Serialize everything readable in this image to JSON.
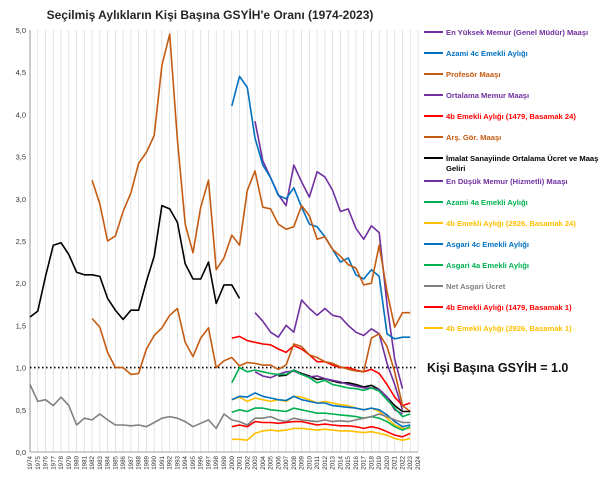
{
  "chart_data": {
    "type": "line",
    "title": "Seçilmiş Aylıkların Kişi Başına GSYİH'e Oranı (1974-2023)",
    "xlabel": "",
    "ylabel": "",
    "xlim": [
      1974,
      2024
    ],
    "ylim": [
      0,
      5.0
    ],
    "y_ticks": [
      "0,0",
      "0,5",
      "1,0",
      "1,5",
      "2,0",
      "2,5",
      "3,0",
      "3,5",
      "4,0",
      "4,5",
      "5,0"
    ],
    "x_ticks": [
      "1974",
      "1975",
      "1976",
      "1977",
      "1978",
      "1979",
      "1980",
      "1981",
      "1982",
      "1983",
      "1984",
      "1985",
      "1986",
      "1987",
      "1988",
      "1989",
      "1990",
      "1991",
      "1992",
      "1993",
      "1994",
      "1995",
      "1996",
      "1997",
      "1998",
      "1999",
      "2000",
      "2001",
      "2002",
      "2003",
      "2004",
      "2005",
      "2006",
      "2007",
      "2008",
      "2009",
      "2010",
      "2011",
      "2012",
      "2013",
      "2014",
      "2015",
      "2016",
      "2017",
      "2018",
      "2019",
      "2020",
      "2021",
      "2022",
      "2023",
      "2024"
    ],
    "grid": "vertical",
    "legend_position": "right",
    "reference_line": {
      "y": 1.0,
      "label": "Kişi Başına GSYİH = 1.0",
      "style": "dotted"
    },
    "series": [
      {
        "name": "En Yüksek Memur (Genel Müdür) Maaşı",
        "color": "#7030a0",
        "x": [
          2003,
          2004,
          2005,
          2006,
          2007,
          2008,
          2009,
          2010,
          2011,
          2012,
          2013,
          2014,
          2015,
          2016,
          2017,
          2018,
          2019,
          2020,
          2021,
          2022
        ],
        "values": [
          3.92,
          3.45,
          3.25,
          3.05,
          2.92,
          3.4,
          3.2,
          3.02,
          3.32,
          3.26,
          3.1,
          2.85,
          2.88,
          2.65,
          2.52,
          2.68,
          2.6,
          1.75,
          1.1,
          0.75
        ]
      },
      {
        "name": "Azami 4c Emekli Aylığı",
        "color": "#0070c0",
        "x": [
          2000,
          2001,
          2002,
          2003,
          2004,
          2005,
          2006,
          2007,
          2008,
          2009,
          2010,
          2011,
          2012,
          2013,
          2014,
          2015,
          2016,
          2017,
          2018,
          2019,
          2020,
          2021,
          2022,
          2023
        ],
        "values": [
          4.1,
          4.45,
          4.32,
          3.72,
          3.4,
          3.25,
          3.04,
          3.0,
          3.13,
          2.9,
          2.7,
          2.67,
          2.55,
          2.4,
          2.25,
          2.3,
          2.1,
          2.05,
          2.16,
          2.08,
          1.4,
          1.34,
          1.36,
          1.36
        ]
      },
      {
        "name": "Profesör Maaşı",
        "color": "#c55a11",
        "x": [
          1982,
          1983,
          1984,
          1985,
          1986,
          1987,
          1988,
          1989,
          1990,
          1991,
          1992,
          1993,
          1994,
          1995,
          1996,
          1997,
          1998,
          1999,
          2000,
          2001,
          2002,
          2003,
          2004,
          2005,
          2006,
          2007,
          2008,
          2009,
          2010,
          2011,
          2012,
          2013,
          2014,
          2015,
          2016,
          2017,
          2018,
          2019,
          2020,
          2021,
          2022,
          2023
        ],
        "values": [
          3.22,
          2.94,
          2.5,
          2.56,
          2.85,
          3.07,
          3.42,
          3.55,
          3.75,
          4.58,
          4.95,
          3.7,
          2.7,
          2.36,
          2.9,
          3.22,
          2.16,
          2.3,
          2.57,
          2.45,
          3.1,
          3.33,
          2.9,
          2.88,
          2.7,
          2.64,
          2.67,
          2.92,
          2.8,
          2.52,
          2.55,
          2.4,
          2.32,
          2.22,
          2.18,
          1.98,
          2.0,
          2.45,
          1.9,
          1.48,
          1.65,
          1.65
        ]
      },
      {
        "name": "Ortalama Memur Maaşı",
        "color": "#7030a0",
        "x": [
          2003,
          2004,
          2005,
          2006,
          2007,
          2008,
          2009,
          2010,
          2011,
          2012,
          2013,
          2014,
          2015,
          2016,
          2017,
          2018,
          2019,
          2020,
          2021,
          2022
        ],
        "values": [
          1.65,
          1.55,
          1.42,
          1.36,
          1.5,
          1.42,
          1.8,
          1.7,
          1.62,
          1.7,
          1.62,
          1.6,
          1.5,
          1.42,
          1.38,
          1.46,
          1.4,
          1.05,
          0.8,
          0.5
        ]
      },
      {
        "name": "4b Emekli Aylığı (1479, Basamak 24)",
        "color": "#ff0000",
        "x": [
          2000,
          2001,
          2002,
          2003,
          2004,
          2005,
          2006,
          2007,
          2008,
          2009,
          2010,
          2011,
          2012,
          2013,
          2014,
          2015,
          2016,
          2017,
          2018,
          2019,
          2020,
          2021,
          2022,
          2023
        ],
        "values": [
          1.35,
          1.37,
          1.32,
          1.3,
          1.28,
          1.27,
          1.22,
          1.18,
          1.26,
          1.22,
          1.15,
          1.07,
          1.07,
          1.03,
          1.0,
          1.0,
          0.97,
          0.95,
          0.98,
          0.93,
          0.8,
          0.65,
          0.55,
          0.58
        ]
      },
      {
        "name": "Arş. Gör. Maaşı",
        "color": "#c55a11",
        "x": [
          1982,
          1983,
          1984,
          1985,
          1986,
          1987,
          1988,
          1989,
          1990,
          1991,
          1992,
          1993,
          1994,
          1995,
          1996,
          1997,
          1998,
          1999,
          2000,
          2001,
          2002,
          2003,
          2004,
          2005,
          2006,
          2007,
          2008,
          2009,
          2010,
          2011,
          2012,
          2013,
          2014,
          2015,
          2016,
          2017,
          2018,
          2019,
          2020,
          2021,
          2022,
          2023
        ],
        "values": [
          1.58,
          1.48,
          1.18,
          1.0,
          1.0,
          0.92,
          0.93,
          1.22,
          1.38,
          1.47,
          1.62,
          1.7,
          1.3,
          1.13,
          1.35,
          1.47,
          1.0,
          1.08,
          1.12,
          1.02,
          1.06,
          1.05,
          1.03,
          1.03,
          0.98,
          1.03,
          1.28,
          1.25,
          1.15,
          1.12,
          1.07,
          1.05,
          1.01,
          0.98,
          0.96,
          0.95,
          1.35,
          1.4,
          1.25,
          0.95,
          0.55,
          0.48
        ]
      },
      {
        "name": "İmalat Sanayiinde Ortalama Ücret ve Maaş Geliri",
        "color": "#000000",
        "x": [
          1974,
          1975,
          1976,
          1977,
          1978,
          1979,
          1980,
          1981,
          1982,
          1983,
          1984,
          1985,
          1986,
          1987,
          1988,
          1989,
          1990,
          1991,
          1992,
          1993,
          1994,
          1995,
          1996,
          1997,
          1998,
          1999,
          2000,
          2001
        ],
        "values": [
          1.6,
          1.67,
          2.08,
          2.45,
          2.48,
          2.34,
          2.13,
          2.1,
          2.1,
          2.08,
          1.82,
          1.68,
          1.57,
          1.68,
          1.68,
          2.02,
          2.32,
          2.92,
          2.88,
          2.72,
          2.23,
          2.05,
          2.05,
          2.25,
          1.76,
          1.98,
          1.98,
          1.82
        ]
      },
      {
        "name": "",
        "color": "#000000",
        "x": [
          2006,
          2007,
          2008,
          2009,
          2010,
          2011,
          2012,
          2013,
          2014,
          2015,
          2016,
          2017,
          2018,
          2019,
          2020,
          2021,
          2022,
          2023
        ],
        "values": [
          0.9,
          0.91,
          0.97,
          0.93,
          0.9,
          0.86,
          0.87,
          0.84,
          0.82,
          0.82,
          0.8,
          0.77,
          0.79,
          0.74,
          0.65,
          0.55,
          0.48,
          0.48
        ]
      },
      {
        "name": "En Düşük Memur (Hizmetli) Maaşı",
        "color": "#7030a0",
        "x": [
          2003,
          2004,
          2005,
          2006,
          2007,
          2008,
          2009,
          2010,
          2011,
          2012,
          2013,
          2014,
          2015,
          2016,
          2017,
          2018,
          2019,
          2020,
          2021,
          2022
        ],
        "values": [
          0.95,
          0.9,
          0.88,
          0.92,
          0.95,
          0.96,
          0.92,
          0.89,
          0.9,
          0.87,
          0.85,
          0.83,
          0.8,
          0.78,
          0.76,
          0.76,
          0.74,
          0.65,
          0.5,
          0.45
        ]
      },
      {
        "name": "Azami 4a Emekli Aylığı",
        "color": "#00b050",
        "x": [
          2000,
          2001,
          2002,
          2003,
          2004,
          2005,
          2006,
          2007,
          2008,
          2009,
          2010,
          2011,
          2012,
          2013,
          2014,
          2015,
          2016,
          2017,
          2018,
          2019,
          2020,
          2021,
          2022,
          2023
        ],
        "values": [
          0.82,
          1.0,
          0.95,
          0.97,
          0.95,
          0.93,
          0.92,
          0.92,
          0.97,
          0.92,
          0.88,
          0.82,
          0.85,
          0.8,
          0.78,
          0.76,
          0.75,
          0.73,
          0.76,
          0.72,
          0.62,
          0.52,
          0.42,
          0.45
        ]
      },
      {
        "name": "4b Emekli Aylığı (2926, Basamak 24)",
        "color": "#ffc000",
        "x": [
          2000,
          2001,
          2002,
          2003,
          2004,
          2005,
          2006,
          2007,
          2008,
          2009,
          2010,
          2011,
          2012,
          2013,
          2014,
          2015,
          2016,
          2017,
          2018,
          2019,
          2020,
          2021,
          2022,
          2023
        ],
        "values": [
          0.62,
          0.65,
          0.6,
          0.64,
          0.62,
          0.6,
          0.62,
          0.6,
          0.66,
          0.65,
          0.62,
          0.58,
          0.6,
          0.58,
          0.56,
          0.55,
          0.52,
          0.5,
          0.52,
          0.48,
          0.4,
          0.32,
          0.28,
          0.28
        ]
      },
      {
        "name": "Asgari 4c Emekli Aylığı",
        "color": "#0070c0",
        "x": [
          2000,
          2001,
          2002,
          2003,
          2004,
          2005,
          2006,
          2007,
          2008,
          2009,
          2010,
          2011,
          2012,
          2013,
          2014,
          2015,
          2016,
          2017,
          2018,
          2019,
          2020,
          2021,
          2022,
          2023
        ],
        "values": [
          0.62,
          0.66,
          0.65,
          0.7,
          0.66,
          0.64,
          0.62,
          0.61,
          0.66,
          0.62,
          0.6,
          0.58,
          0.58,
          0.55,
          0.54,
          0.53,
          0.52,
          0.5,
          0.52,
          0.5,
          0.44,
          0.36,
          0.3,
          0.32
        ]
      },
      {
        "name": "Asgari 4a Emekli Aylığı",
        "color": "#00b050",
        "x": [
          2000,
          2001,
          2002,
          2003,
          2004,
          2005,
          2006,
          2007,
          2008,
          2009,
          2010,
          2011,
          2012,
          2013,
          2014,
          2015,
          2016,
          2017,
          2018,
          2019,
          2020,
          2021,
          2022,
          2023
        ],
        "values": [
          0.47,
          0.5,
          0.48,
          0.52,
          0.52,
          0.5,
          0.49,
          0.48,
          0.52,
          0.5,
          0.48,
          0.46,
          0.46,
          0.45,
          0.44,
          0.43,
          0.42,
          0.4,
          0.42,
          0.4,
          0.36,
          0.3,
          0.26,
          0.3
        ]
      },
      {
        "name": "Net Asgari Ücret",
        "color": "#808080",
        "x": [
          1974,
          1975,
          1976,
          1977,
          1978,
          1979,
          1980,
          1981,
          1982,
          1983,
          1984,
          1985,
          1986,
          1987,
          1988,
          1989,
          1990,
          1991,
          1992,
          1993,
          1994,
          1995,
          1996,
          1997,
          1998,
          1999,
          2000,
          2001,
          2002,
          2003,
          2004,
          2005,
          2006,
          2007,
          2008,
          2009,
          2010,
          2011,
          2012,
          2013,
          2014,
          2015,
          2016,
          2017,
          2018,
          2019,
          2020,
          2021,
          2022,
          2023
        ],
        "values": [
          0.8,
          0.6,
          0.62,
          0.55,
          0.65,
          0.55,
          0.32,
          0.4,
          0.38,
          0.45,
          0.38,
          0.32,
          0.32,
          0.31,
          0.32,
          0.3,
          0.35,
          0.4,
          0.42,
          0.4,
          0.36,
          0.3,
          0.34,
          0.38,
          0.28,
          0.45,
          0.38,
          0.36,
          0.32,
          0.4,
          0.4,
          0.42,
          0.38,
          0.36,
          0.4,
          0.38,
          0.37,
          0.36,
          0.38,
          0.36,
          0.37,
          0.36,
          0.38,
          0.4,
          0.42,
          0.45,
          0.42,
          0.38,
          0.35,
          0.35
        ]
      },
      {
        "name": "4b Emekli Aylığı (1479, Basamak 1)",
        "color": "#ff0000",
        "x": [
          2000,
          2001,
          2002,
          2003,
          2004,
          2005,
          2006,
          2007,
          2008,
          2009,
          2010,
          2011,
          2012,
          2013,
          2014,
          2015,
          2016,
          2017,
          2018,
          2019,
          2020,
          2021,
          2022,
          2023
        ],
        "values": [
          0.3,
          0.32,
          0.3,
          0.36,
          0.35,
          0.35,
          0.34,
          0.35,
          0.36,
          0.36,
          0.34,
          0.32,
          0.33,
          0.32,
          0.31,
          0.31,
          0.3,
          0.28,
          0.3,
          0.28,
          0.24,
          0.2,
          0.18,
          0.22
        ]
      },
      {
        "name": "4b Emekli Aylığı (2926, Basamak 1)",
        "color": "#ffc000",
        "x": [
          2000,
          2001,
          2002,
          2003,
          2004,
          2005,
          2006,
          2007,
          2008,
          2009,
          2010,
          2011,
          2012,
          2013,
          2014,
          2015,
          2016,
          2017,
          2018,
          2019,
          2020,
          2021,
          2022,
          2023
        ],
        "values": [
          0.15,
          0.15,
          0.14,
          0.22,
          0.25,
          0.26,
          0.25,
          0.26,
          0.28,
          0.28,
          0.27,
          0.26,
          0.27,
          0.26,
          0.25,
          0.25,
          0.24,
          0.23,
          0.24,
          0.22,
          0.2,
          0.16,
          0.14,
          0.16
        ]
      }
    ],
    "legend": [
      {
        "label": "En Yüksek Memur (Genel Müdür) Maaşı",
        "color": "#7030a0"
      },
      {
        "label": "Azami 4c Emekli Aylığı",
        "color": "#0070c0"
      },
      {
        "label": "Profesör Maaşı",
        "color": "#c55a11"
      },
      {
        "label": "Ortalama Memur Maaşı",
        "color": "#7030a0"
      },
      {
        "label": "4b Emekli Aylığı (1479, Basamak 24)",
        "color": "#ff0000"
      },
      {
        "label": "Arş. Gör. Maaşı",
        "color": "#c55a11"
      },
      {
        "label": "İmalat Sanayiinde Ortalama Ücret ve Maaş Geliri",
        "color": "#000000"
      },
      {
        "label": "En Düşük Memur (Hizmetli) Maaşı",
        "color": "#7030a0"
      },
      {
        "label": "Azami 4a Emekli Aylığı",
        "color": "#00b050"
      },
      {
        "label": "4b Emekli Aylığı (2926, Basamak 24)",
        "color": "#ffc000"
      },
      {
        "label": "Asgari 4c Emekli Aylığı",
        "color": "#0070c0"
      },
      {
        "label": "Asgari 4a Emekli Aylığı",
        "color": "#00b050"
      },
      {
        "label": "Net Asgari Ücret",
        "color": "#808080"
      },
      {
        "label": "4b Emekli Aylığı (1479, Basamak 1)",
        "color": "#ff0000"
      },
      {
        "label": "4b Emekli Aylığı (2926, Basamak 1)",
        "color": "#ffc000"
      }
    ]
  }
}
